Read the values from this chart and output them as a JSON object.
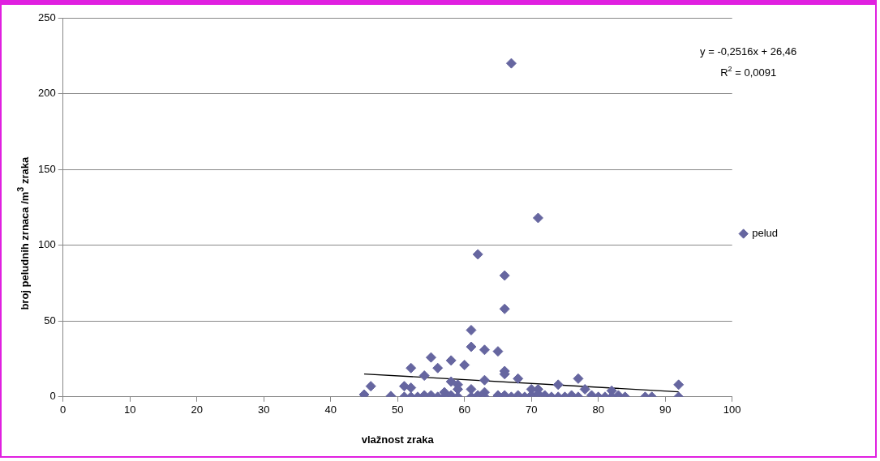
{
  "chart_data": {
    "type": "scatter",
    "xlabel": "vlažnost zraka",
    "ylabel": "broj peludnih zrnaca /m$^{3}$ zraka",
    "xlim": [
      0,
      100
    ],
    "xticks": [
      0,
      10,
      20,
      30,
      40,
      50,
      60,
      70,
      80,
      90,
      100
    ],
    "ylim": [
      0,
      250
    ],
    "yticks": [
      0,
      50,
      100,
      150,
      200,
      250
    ],
    "grid": "y",
    "legend": "right",
    "marker": "diamond",
    "annotations": [
      "y = -0,2516x + 26,46",
      "R$^{2}$ = 0,0091"
    ],
    "series": [
      {
        "name": "pelud",
        "color": "#6666a0",
        "x": [
          45,
          46,
          49,
          51,
          51,
          52,
          52,
          52,
          53,
          54,
          54,
          55,
          55,
          56,
          56,
          57,
          57,
          58,
          58,
          58,
          59,
          59,
          59,
          60,
          61,
          61,
          61,
          61,
          62,
          62,
          63,
          63,
          63,
          63,
          65,
          65,
          65,
          66,
          66,
          66,
          66,
          66,
          67,
          67,
          68,
          68,
          69,
          70,
          70,
          71,
          71,
          71,
          72,
          73,
          74,
          74,
          75,
          76,
          77,
          77,
          78,
          79,
          80,
          81,
          82,
          82,
          83,
          84,
          87,
          88,
          92,
          92
        ],
        "values": [
          1.5,
          7,
          0.5,
          7,
          0,
          19,
          6,
          0,
          0,
          14,
          1,
          26,
          1,
          19,
          0,
          0,
          3,
          24,
          10,
          1,
          8,
          5,
          0,
          21,
          44,
          33,
          5,
          0,
          94,
          1,
          31,
          11,
          3,
          0,
          30,
          1,
          0,
          80,
          58,
          17,
          15,
          1,
          220,
          0,
          12,
          1,
          0,
          5,
          1,
          118,
          5,
          2,
          1,
          0,
          8,
          0,
          0,
          1,
          12,
          0,
          5,
          1,
          0,
          0,
          4,
          0,
          1,
          0,
          0,
          0,
          8,
          0
        ]
      },
      {
        "type": "line",
        "color": "#000000",
        "x": [
          45,
          92
        ],
        "values": [
          15.1,
          3.3
        ],
        "marker": "none"
      }
    ]
  }
}
